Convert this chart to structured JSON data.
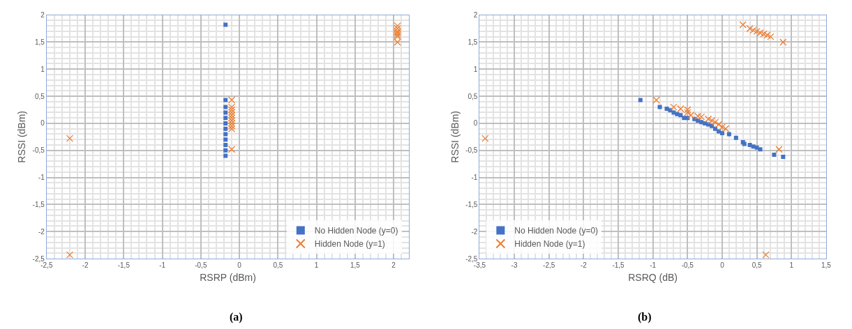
{
  "chart_data": [
    {
      "type": "scatter",
      "xlabel": "RSRP (dBm)",
      "ylabel": "RSSI (dBm)",
      "annotations": [
        "(a)"
      ],
      "xlim": [
        -2.5,
        2.2
      ],
      "ylim": [
        -2.5,
        2
      ],
      "xticks": [
        {
          "value": -2.5,
          "label": "-2,5"
        },
        -2,
        {
          "value": -1.5,
          "label": "-1,5"
        },
        -1,
        {
          "value": -0.5,
          "label": "-0,5"
        },
        0,
        {
          "value": 0.5,
          "label": "0,5"
        },
        1,
        {
          "value": 1.5,
          "label": "1,5"
        },
        2
      ],
      "yticks": [
        {
          "value": -2.5,
          "label": "-2,5"
        },
        -2,
        {
          "value": -1.5,
          "label": "-1,5"
        },
        -1,
        {
          "value": -0.5,
          "label": "-0,5"
        },
        0,
        {
          "value": 0.5,
          "label": "0,5"
        },
        1,
        {
          "value": 1.5,
          "label": "1,5"
        },
        2
      ],
      "grid": true,
      "legend": "bottom right",
      "series": [
        {
          "name": "No Hidden Node (y=0)",
          "color": "#4472c4",
          "marker": "square",
          "x": [
            -0.18,
            -0.18,
            -0.18,
            -0.18,
            -0.18,
            -0.18,
            -0.18,
            -0.18,
            -0.18,
            -0.18,
            -0.18,
            -0.18
          ],
          "values": [
            1.82,
            0.43,
            0.3,
            0.2,
            0.1,
            0,
            -0.1,
            -0.2,
            -0.3,
            -0.4,
            -0.5,
            -0.6
          ]
        },
        {
          "name": "Hidden Node (y=1)",
          "color": "#ed7d31",
          "marker": "cross",
          "x": [
            -2.2,
            -2.2,
            -0.1,
            -0.1,
            -0.1,
            -0.1,
            -0.1,
            -0.1,
            -0.1,
            -0.1,
            -0.1,
            -0.1,
            -0.1,
            2.05,
            2.05,
            2.05,
            2.05,
            2.05,
            2.05,
            2.05
          ],
          "values": [
            -0.28,
            -2.43,
            0.43,
            0.3,
            0.25,
            0.2,
            0.15,
            0.1,
            0.05,
            0,
            -0.05,
            -0.1,
            -0.48,
            1.8,
            1.75,
            1.7,
            1.67,
            1.63,
            1.6,
            1.5
          ]
        }
      ]
    },
    {
      "type": "scatter",
      "xlabel": "RSRQ (dB)",
      "ylabel": "RSSI (dBm)",
      "annotations": [
        "(b)"
      ],
      "xlim": [
        -3.5,
        1.5
      ],
      "ylim": [
        -2.5,
        2
      ],
      "xticks": [
        {
          "value": -3.5,
          "label": "-3,5"
        },
        -3,
        {
          "value": -2.5,
          "label": "-2,5"
        },
        -2,
        {
          "value": -1.5,
          "label": "-1,5"
        },
        -1,
        {
          "value": -0.5,
          "label": "-0,5"
        },
        0,
        {
          "value": 0.5,
          "label": "0,5"
        },
        1,
        {
          "value": 1.5,
          "label": "1,5"
        }
      ],
      "yticks": [
        {
          "value": -2.5,
          "label": "-2,5"
        },
        -2,
        {
          "value": -1.5,
          "label": "-1,5"
        },
        -1,
        {
          "value": -0.5,
          "label": "-0,5"
        },
        0,
        {
          "value": 0.5,
          "label": "0,5"
        },
        1,
        {
          "value": 1.5,
          "label": "1,5"
        },
        2
      ],
      "grid": true,
      "legend": "bottom left",
      "series": [
        {
          "name": "No Hidden Node (y=0)",
          "color": "#4472c4",
          "marker": "square",
          "x": [
            -1.18,
            -0.9,
            -0.8,
            -0.75,
            -0.7,
            -0.65,
            -0.6,
            -0.55,
            -0.5,
            -0.4,
            -0.35,
            -0.3,
            -0.25,
            -0.2,
            -0.15,
            -0.1,
            -0.05,
            0,
            0.1,
            0.2,
            0.3,
            0.32,
            0.4,
            0.45,
            0.5,
            0.55,
            0.75,
            0.88
          ],
          "values": [
            0.43,
            0.3,
            0.27,
            0.24,
            0.2,
            0.17,
            0.15,
            0.1,
            0.1,
            0.08,
            0.05,
            0.02,
            0,
            -0.02,
            -0.05,
            -0.1,
            -0.15,
            -0.18,
            -0.2,
            -0.27,
            -0.35,
            -0.38,
            -0.4,
            -0.43,
            -0.45,
            -0.48,
            -0.58,
            -0.62
          ]
        },
        {
          "name": "Hidden Node (y=1)",
          "color": "#ed7d31",
          "marker": "cross",
          "x": [
            -3.42,
            -0.95,
            -0.7,
            -0.6,
            -0.5,
            -0.5,
            -0.45,
            -0.35,
            -0.3,
            -0.2,
            -0.15,
            -0.1,
            -0.05,
            0,
            0.05,
            0.82,
            0.63,
            0.3,
            0.4,
            0.45,
            0.5,
            0.55,
            0.6,
            0.65,
            0.7,
            0.88
          ],
          "values": [
            -0.28,
            0.43,
            0.3,
            0.27,
            0.25,
            0.2,
            0.15,
            0.13,
            0.12,
            0.08,
            0.05,
            0.02,
            -0.02,
            -0.07,
            -0.1,
            -0.48,
            -2.43,
            1.82,
            1.75,
            1.72,
            1.7,
            1.67,
            1.65,
            1.63,
            1.6,
            1.5
          ]
        }
      ]
    }
  ]
}
